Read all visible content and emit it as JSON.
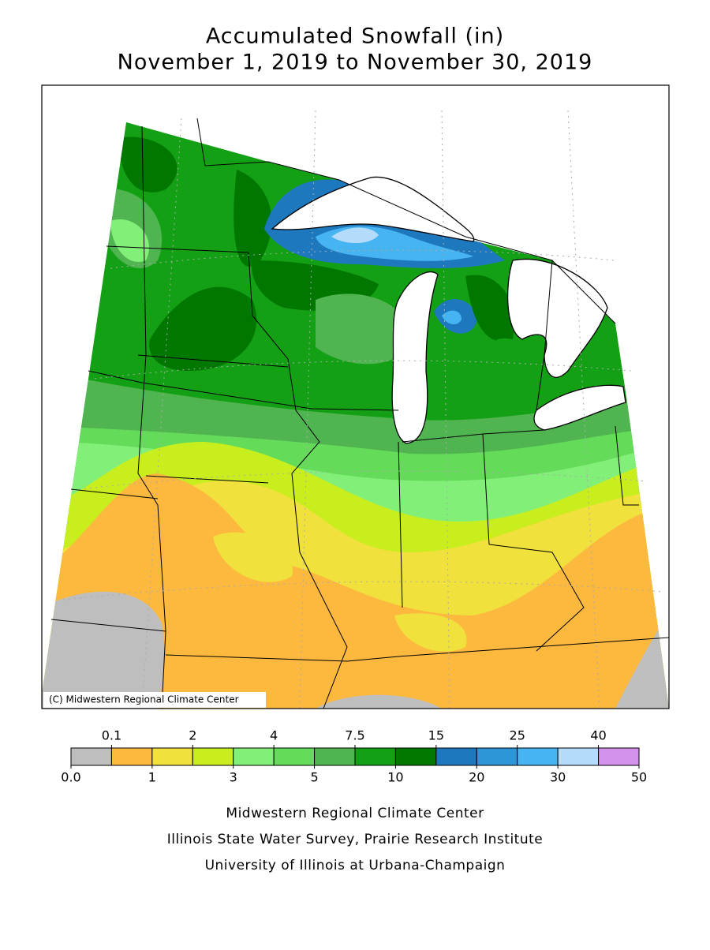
{
  "title": [
    "Accumulated Snowfall (in)",
    "November 1, 2019 to November 30, 2019"
  ],
  "map": {
    "credit": "(C) Midwestern Regional Climate Center"
  },
  "legend": {
    "colors": [
      "#bebebe",
      "#fdb83e",
      "#f0e13c",
      "#c8ee1e",
      "#82f078",
      "#64dc5a",
      "#50b450",
      "#14a014",
      "#007800",
      "#1e78be",
      "#2d96d7",
      "#46b4f0",
      "#b4dcfa",
      "#d291ed"
    ],
    "ticks": [
      {
        "value": 0,
        "label": "0.0"
      },
      0.1,
      1,
      2,
      3,
      4,
      5,
      7.5,
      10,
      15,
      20,
      25,
      30,
      40,
      50
    ]
  },
  "footer": [
    "Midwestern Regional Climate Center",
    "Illinois State Water Survey, Prairie Research Institute",
    "University of Illinois at Urbana-Champaign"
  ]
}
